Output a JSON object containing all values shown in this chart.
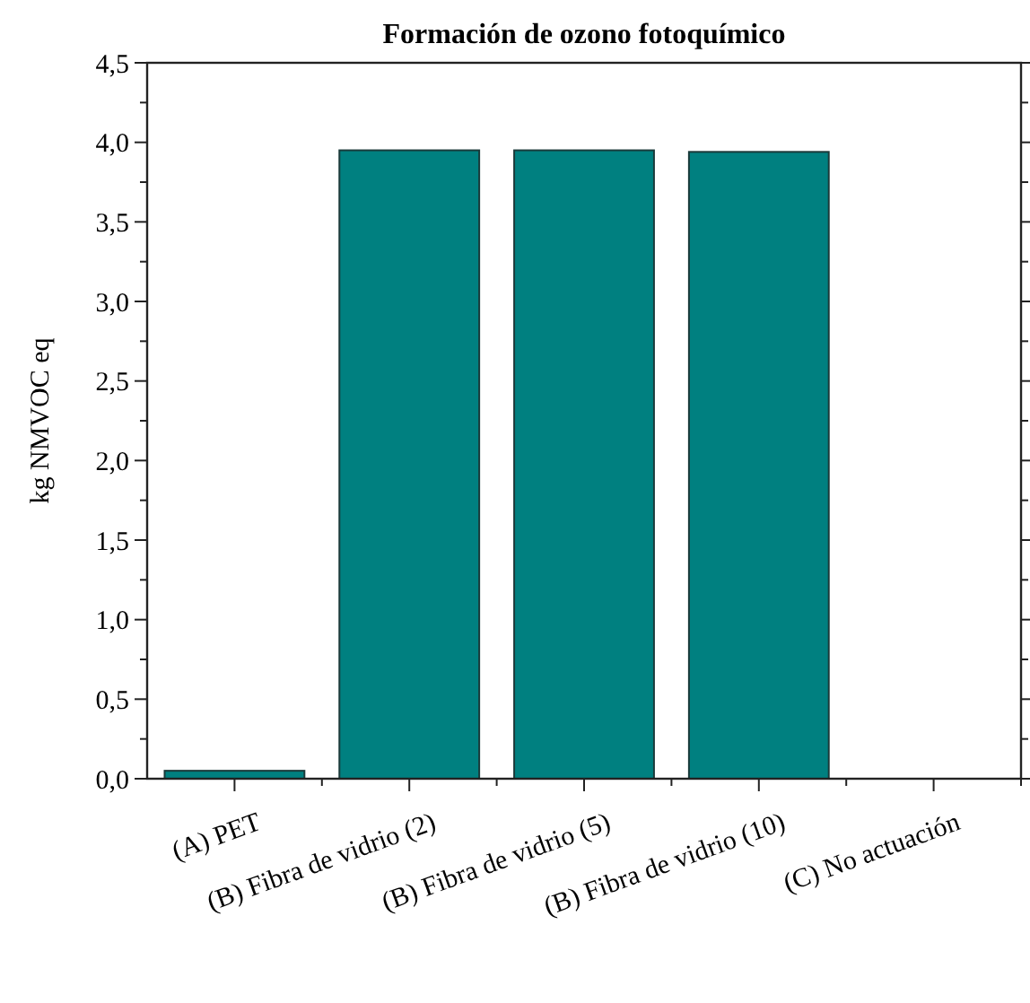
{
  "chart_data": {
    "type": "bar",
    "title": "Formación de ozono fotoquímico",
    "ylabel": "kg NMVOC eq",
    "categories": [
      "(A) PET",
      "(B) Fibra de vidrio (2)",
      "(B) Fibra de vidrio (5)",
      "(B) Fibra de vidrio (10)",
      "(C) No actuación"
    ],
    "values": [
      0.05,
      3.95,
      3.95,
      3.94,
      0
    ],
    "color": "#008080",
    "ylim": [
      0,
      4.5
    ],
    "yticks": [
      {
        "value": 0,
        "label": "0,0"
      },
      {
        "value": 0.25,
        "label": null
      },
      {
        "value": 0.5,
        "label": "0,5"
      },
      {
        "value": 0.75,
        "label": null
      },
      {
        "value": 1,
        "label": "1,0"
      },
      {
        "value": 1.25,
        "label": null
      },
      {
        "value": 1.5,
        "label": "1,5"
      },
      {
        "value": 1.75,
        "label": null
      },
      {
        "value": 2,
        "label": "2,0"
      },
      {
        "value": 2.25,
        "label": null
      },
      {
        "value": 2.5,
        "label": "2,5"
      },
      {
        "value": 2.75,
        "label": null
      },
      {
        "value": 3,
        "label": "3,0"
      },
      {
        "value": 3.25,
        "label": null
      },
      {
        "value": 3.5,
        "label": "3,5"
      },
      {
        "value": 3.75,
        "label": null
      },
      {
        "value": 4,
        "label": "4,0"
      },
      {
        "value": 4.25,
        "label": null
      },
      {
        "value": 4.5,
        "label": "4,5"
      }
    ],
    "grid": false
  }
}
